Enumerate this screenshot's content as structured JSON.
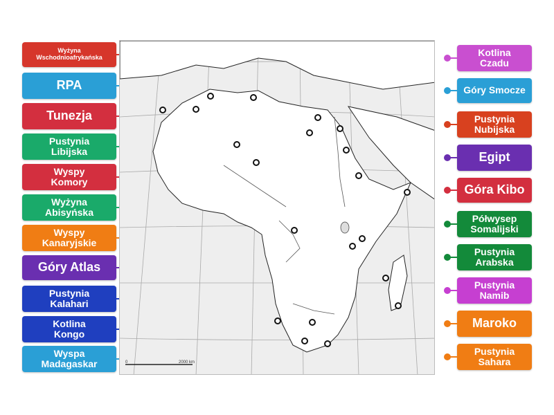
{
  "colors": {
    "red": "#d32f3f",
    "blue": "#2a9fd6",
    "green": "#1aaa6a",
    "orange": "#f07d14",
    "purple": "#6a2fb0",
    "darkblue": "#1f3fbf",
    "pink": "#c94fd0",
    "magenta": "#c63fd1",
    "deepred": "#d8411f",
    "darkgreen": "#138a3a"
  },
  "left_labels": [
    {
      "text": "Wyżyna\nWschodnioafrykańska",
      "color": "#d6362b"
    },
    {
      "text": "RPA",
      "color": "#2a9fd6"
    },
    {
      "text": "Tunezja",
      "color": "#d32f3f"
    },
    {
      "text": "Pustynia\nLibijska",
      "color": "#1aaa6a"
    },
    {
      "text": "Wyspy\nKomory",
      "color": "#d32f3f"
    },
    {
      "text": "Wyżyna\nAbisyńska",
      "color": "#1aaa6a"
    },
    {
      "text": "Wyspy\nKanaryjskie",
      "color": "#f07d14"
    },
    {
      "text": "Góry Atlas",
      "color": "#6a2fb0"
    },
    {
      "text": "Pustynia\nKalahari",
      "color": "#1f3fbf"
    },
    {
      "text": "Kotlina\nKongo",
      "color": "#1f3fbf"
    },
    {
      "text": "Wyspa\nMadagaskar",
      "color": "#2a9fd6"
    }
  ],
  "right_labels": [
    {
      "text": "Kotlina\nCzadu",
      "color": "#c94fd0"
    },
    {
      "text": "Góry Smocze",
      "color": "#2a9fd6"
    },
    {
      "text": "Pustynia\nNubijska",
      "color": "#d8411f"
    },
    {
      "text": "Egipt",
      "color": "#6a2fb0"
    },
    {
      "text": "Góra Kibo",
      "color": "#d32f3f"
    },
    {
      "text": "Półwysep\nSomalijski",
      "color": "#138a3a"
    },
    {
      "text": "Pustynia\nArabska",
      "color": "#138a3a"
    },
    {
      "text": "Pustynia\nNamib",
      "color": "#c63fd1"
    },
    {
      "text": "Maroko",
      "color": "#f07d14"
    },
    {
      "text": "Pustynia\nSahara",
      "color": "#f07d14"
    }
  ],
  "map": {
    "scale_start": "0",
    "scale_end": "2000 km",
    "markers": 21
  }
}
